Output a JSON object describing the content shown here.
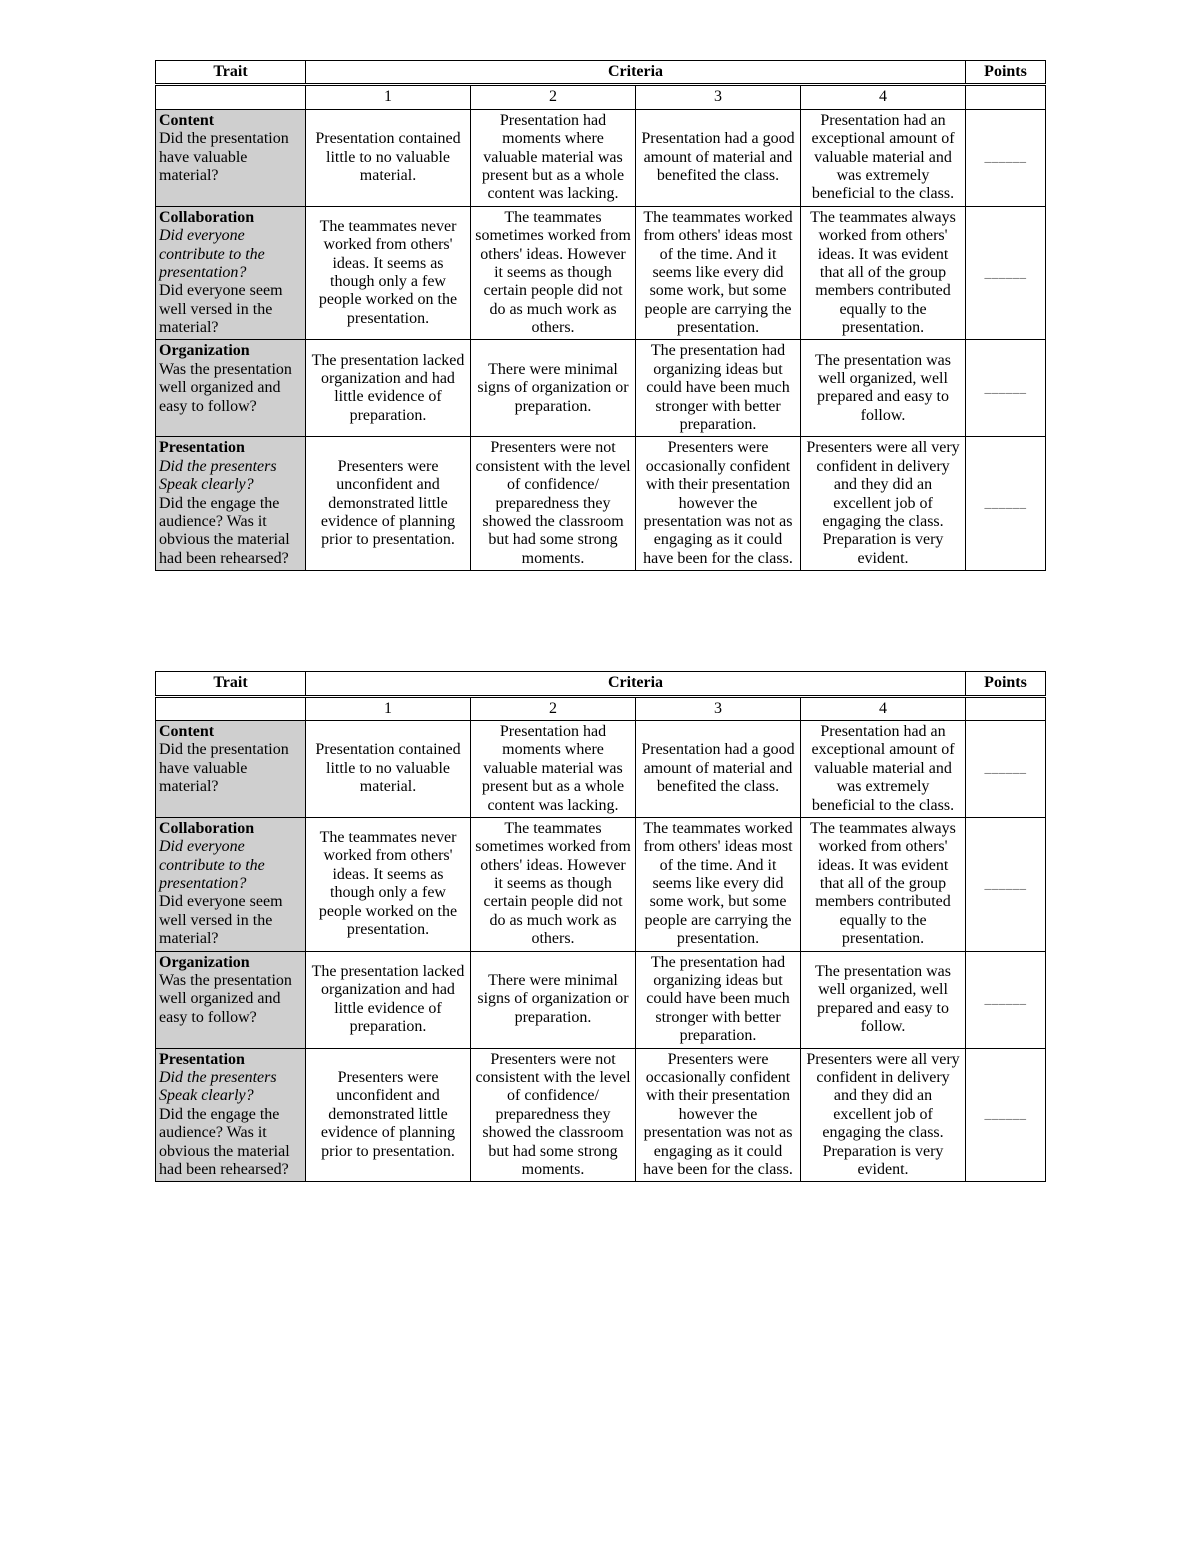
{
  "headers": {
    "trait": "Trait",
    "criteria": "Criteria",
    "points": "Points",
    "levels": [
      "1",
      "2",
      "3",
      "4"
    ]
  },
  "points_blank": "______",
  "rows": [
    {
      "trait_title": "Content",
      "trait_q0": "",
      "trait_rest": "Did the presentation have valuable material?",
      "c1": "Presentation contained little to no valuable material.",
      "c2": "Presentation had moments where valuable material was present but as a whole content was lacking.",
      "c3": "Presentation had a good amount of material and benefited the class.",
      "c4": "Presentation had an exceptional amount of valuable material and was extremely beneficial to the class."
    },
    {
      "trait_title": "Collaboration",
      "trait_q0": "Did everyone contribute to the presentation?",
      "trait_rest": "Did everyone seem well versed in the material?",
      "c1": "The teammates never worked from others' ideas. It seems as though only a few people worked on the presentation.",
      "c2": "The teammates sometimes worked from others' ideas. However it seems as though certain people did not do as much work as others.",
      "c3": "The teammates worked from others' ideas most of the time.  And it seems like every did some work, but some people are carrying the presentation.",
      "c4": "The teammates always worked from others' ideas. It was evident that all of the group members contributed equally to the presentation."
    },
    {
      "trait_title": "Organization",
      "trait_q0": "",
      "trait_rest": "Was the presentation well organized and easy to follow?",
      "c1": "The presentation lacked organization and had little evidence of preparation.",
      "c2": "There were minimal signs of organization or preparation.",
      "c3": "The presentation had organizing ideas but could have been much stronger with better preparation.",
      "c4": "The presentation was well organized, well prepared and easy to follow."
    },
    {
      "trait_title": "Presentation",
      "trait_q0": "Did the presenters Speak clearly?",
      "trait_rest": "Did the engage the audience? Was it obvious the material had been rehearsed?",
      "c1": "Presenters were unconfident and demonstrated little evidence of planning prior to presentation.",
      "c2": "Presenters were not consistent with the level of confidence/ preparedness they showed the classroom but had some strong moments.",
      "c3": "Presenters were occasionally confident with their presentation however the presentation was not as engaging as it could have been for the class.",
      "c4": "Presenters were all very confident in delivery and they did an excellent job of engaging the class. Preparation is very evident."
    }
  ],
  "repeat_count": 2,
  "colors": {
    "trait_bg": "#cfcfcf",
    "border": "#000000",
    "page_bg": "#ffffff"
  }
}
